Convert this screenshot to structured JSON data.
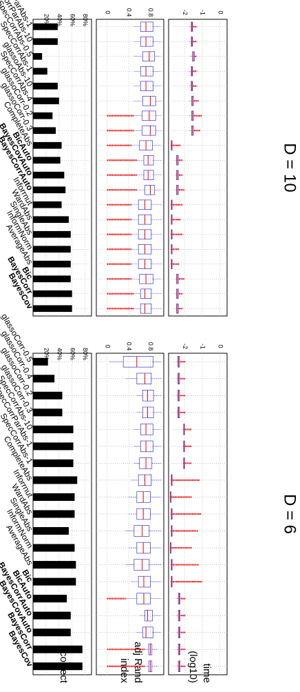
{
  "row_labels": [
    "time\n(log10)",
    "adj Rand\nindex",
    "correct"
  ],
  "chart_data": [
    {
      "type": "boxplot",
      "title": "D = 6",
      "categories": [
        "BayesCov",
        "BayesCorr",
        "BayesCovAuto",
        "BayesCorrAuto",
        "BicAuto",
        "Bic",
        "AverageAbs",
        "InformNorm",
        "SingleAbs",
        "WardAbs",
        "Inforrnut",
        "CompleteAbs",
        "SpecCorrAbs-1",
        "SpecCorrParAbs-1",
        "SpecCorrAbs-10",
        "glassoCorr-0.3",
        "glassoCorr-0.2",
        "glassoCorr-0.4",
        "glassoCorr-0.5"
      ],
      "bold_categories": [
        "BayesCov",
        "BayesCorr",
        "BayesCovAuto",
        "BayesCorrAuto",
        "BicAuto",
        "Bic"
      ],
      "panels": [
        {
          "name": "time",
          "ticks": [
            0,
            -1,
            -2
          ],
          "ylim": [
            -2.9,
            0.4
          ],
          "boxes": [
            [
              -2.45,
              -2.35,
              -2.3,
              -2.25,
              -2.2
            ],
            [
              -2.45,
              -2.35,
              -2.3,
              -2.25,
              -2.2
            ],
            [
              -2.45,
              -2.35,
              -2.3,
              -2.25,
              -2.2
            ],
            [
              -2.45,
              -2.35,
              -2.3,
              -2.25,
              -2.2
            ],
            [
              -2.45,
              -2.35,
              -2.3,
              -2.25,
              -2.2
            ],
            [
              -2.8,
              -2.75,
              -2.72,
              -2.7,
              -2.65
            ],
            [
              -2.8,
              -2.75,
              -2.72,
              -2.7,
              -2.65
            ],
            [
              -2.85,
              -2.8,
              -2.78,
              -2.76,
              -2.72
            ],
            [
              -2.8,
              -2.75,
              -2.72,
              -2.7,
              -2.65
            ],
            [
              -2.8,
              -2.75,
              -2.72,
              -2.7,
              -2.65
            ],
            [
              -2.85,
              -2.8,
              -2.78,
              -2.76,
              -2.72
            ],
            [
              -2.8,
              -2.75,
              -2.72,
              -2.7,
              -2.65
            ],
            [
              -2.1,
              -2.05,
              -2.02,
              -2.0,
              -1.95
            ],
            [
              -2.1,
              -2.05,
              -2.02,
              -2.0,
              -1.95
            ],
            [
              -2.1,
              -2.05,
              -2.02,
              -2.0,
              -1.95
            ],
            [
              -2.45,
              -2.38,
              -2.33,
              -2.28,
              -2.22
            ],
            [
              -2.45,
              -2.38,
              -2.33,
              -2.28,
              -2.22
            ],
            [
              -2.45,
              -2.38,
              -2.33,
              -2.28,
              -2.22
            ],
            [
              -2.45,
              -2.38,
              -2.33,
              -2.28,
              -2.22
            ]
          ],
          "outliers_to": [
            -1.95,
            -1.95,
            -1.95,
            -1.95,
            -1.95,
            -1.0,
            -1.2,
            -1.6,
            -1.25,
            -1.05,
            -1.6,
            -1.15,
            -1.6,
            -1.6,
            -1.6,
            -1.95,
            -1.95,
            -1.95,
            -1.95
          ]
        },
        {
          "name": "adj Rand index",
          "ticks": [
            0.8,
            0.4,
            0
          ],
          "ylim": [
            -0.2,
            1.05
          ],
          "boxes": [
            [
              0.7,
              0.77,
              0.8,
              0.83,
              0.95
            ],
            [
              0.7,
              0.77,
              0.8,
              0.83,
              0.95
            ],
            [
              0.55,
              0.66,
              0.72,
              0.85,
              1.0
            ],
            [
              0.6,
              0.7,
              0.75,
              0.84,
              1.0
            ],
            [
              0.35,
              0.55,
              0.68,
              0.8,
              1.0
            ],
            [
              0.45,
              0.58,
              0.68,
              0.8,
              1.0
            ],
            [
              0.35,
              0.5,
              0.65,
              0.78,
              1.0
            ],
            [
              0.4,
              0.55,
              0.67,
              0.8,
              1.0
            ],
            [
              0.35,
              0.5,
              0.65,
              0.78,
              1.0
            ],
            [
              0.4,
              0.55,
              0.67,
              0.8,
              1.0
            ],
            [
              0.4,
              0.55,
              0.67,
              0.8,
              1.0
            ],
            [
              0.45,
              0.58,
              0.7,
              0.82,
              1.0
            ],
            [
              0.5,
              0.6,
              0.72,
              0.83,
              1.0
            ],
            [
              0.5,
              0.62,
              0.72,
              0.85,
              1.0
            ],
            [
              0.5,
              0.62,
              0.72,
              0.85,
              1.0
            ],
            [
              0.55,
              0.66,
              0.75,
              0.86,
              1.0
            ],
            [
              0.55,
              0.66,
              0.75,
              0.86,
              1.0
            ],
            [
              0.35,
              0.55,
              0.7,
              0.82,
              1.0
            ],
            [
              0.05,
              0.3,
              0.55,
              0.85,
              1.0
            ]
          ],
          "outliers_to": [
            0.0,
            0.0,
            null,
            null,
            0.0,
            null,
            null,
            null,
            null,
            null,
            null,
            null,
            null,
            null,
            null,
            null,
            null,
            null,
            null
          ]
        },
        {
          "name": "correct",
          "type": "bar",
          "ticks": [
            "80%",
            "60%",
            "40%",
            "20%"
          ],
          "ylim": [
            0,
            0.9
          ],
          "values": [
            0.76,
            0.76,
            0.58,
            0.58,
            0.52,
            0.66,
            0.66,
            0.64,
            0.55,
            0.64,
            0.64,
            0.68,
            0.62,
            0.62,
            0.62,
            0.45,
            0.45,
            0.33,
            0.23
          ]
        }
      ]
    },
    {
      "type": "boxplot",
      "title": "D = 10",
      "categories": [
        "BayesCov",
        "BayesCorr",
        "Bic",
        "AverageAbs",
        "InformNorm",
        "SingleAbs",
        "WardAbs",
        "Inforrnut",
        "BayesCorrAuto",
        "BayesCovAuto",
        "BicAuto",
        "CompleteAbs",
        "glassoCorr-0.3",
        "glassoCorr-0.2",
        "SpecCorrAbs-4",
        "glassoAbs-10",
        "SpecCorrAbs-1",
        "SpecCorrAbs-0.5",
        "SpecCorrParAbs-10",
        "SpecCorrParAbs-1"
      ],
      "bold_categories": [
        "BayesCov",
        "BayesCorr",
        "Bic",
        "BayesCorrAuto",
        "BayesCovAuto",
        "BicAuto"
      ],
      "panels": [
        {
          "name": "time",
          "ticks": [
            0,
            -1,
            -2
          ],
          "ylim": [
            -2.9,
            0.4
          ],
          "boxes": [
            [
              -2.5,
              -2.45,
              -2.4,
              -2.35,
              -2.3
            ],
            [
              -2.5,
              -2.45,
              -2.4,
              -2.35,
              -2.3
            ],
            [
              -2.5,
              -2.45,
              -2.4,
              -2.35,
              -2.3
            ],
            [
              -2.8,
              -2.75,
              -2.72,
              -2.7,
              -2.65
            ],
            [
              -2.8,
              -2.75,
              -2.72,
              -2.7,
              -2.65
            ],
            [
              -2.8,
              -2.75,
              -2.72,
              -2.7,
              -2.65
            ],
            [
              -2.8,
              -2.75,
              -2.72,
              -2.7,
              -2.65
            ],
            [
              -2.8,
              -2.75,
              -2.72,
              -2.7,
              -2.65
            ],
            [
              -2.5,
              -2.45,
              -2.4,
              -2.35,
              -2.3
            ],
            [
              -2.5,
              -2.45,
              -2.4,
              -2.35,
              -2.3
            ],
            [
              -2.5,
              -2.45,
              -2.4,
              -2.35,
              -2.3
            ],
            [
              -2.8,
              -2.75,
              -2.72,
              -2.7,
              -2.65
            ],
            [
              -1.75,
              -1.6,
              -1.55,
              -1.5,
              -1.45
            ],
            [
              -1.75,
              -1.6,
              -1.55,
              -1.5,
              -1.45
            ],
            [
              -1.75,
              -1.6,
              -1.55,
              -1.5,
              -1.45
            ],
            [
              -1.75,
              -1.62,
              -1.58,
              -1.55,
              -1.5
            ],
            [
              -1.75,
              -1.62,
              -1.58,
              -1.55,
              -1.5
            ],
            [
              -1.7,
              -1.55,
              -1.5,
              -1.45,
              -1.4
            ],
            [
              -1.75,
              -1.62,
              -1.58,
              -1.55,
              -1.5
            ],
            [
              -1.75,
              -1.62,
              -1.58,
              -1.55,
              -1.5
            ]
          ],
          "outliers_to": [
            -2.1,
            -2.1,
            -2.0,
            -2.3,
            -2.3,
            -2.1,
            -2.2,
            -2.1,
            -2.0,
            -2.1,
            -2.1,
            -2.2,
            -1.1,
            -1.0,
            -1.2,
            -1.3,
            -1.3,
            -1.3,
            -1.3,
            -1.3
          ]
        },
        {
          "name": "adj Rand index",
          "ticks": [
            0.8,
            0.4,
            0
          ],
          "ylim": [
            -0.2,
            1.05
          ],
          "boxes": [
            [
              0.5,
              0.62,
              0.7,
              0.82,
              1.0
            ],
            [
              0.5,
              0.62,
              0.7,
              0.82,
              1.0
            ],
            [
              0.45,
              0.6,
              0.72,
              0.85,
              1.0
            ],
            [
              0.45,
              0.58,
              0.7,
              0.82,
              1.0
            ],
            [
              0.45,
              0.58,
              0.7,
              0.82,
              1.0
            ],
            [
              0.45,
              0.58,
              0.7,
              0.82,
              1.0
            ],
            [
              0.45,
              0.58,
              0.7,
              0.82,
              1.0
            ],
            [
              0.45,
              0.58,
              0.7,
              0.82,
              1.0
            ],
            [
              0.55,
              0.7,
              0.8,
              0.88,
              1.0
            ],
            [
              0.55,
              0.68,
              0.76,
              0.86,
              1.0
            ],
            [
              0.55,
              0.68,
              0.76,
              0.86,
              1.0
            ],
            [
              0.45,
              0.6,
              0.72,
              0.84,
              1.0
            ],
            [
              0.5,
              0.65,
              0.8,
              0.9,
              1.0
            ],
            [
              0.5,
              0.65,
              0.78,
              0.9,
              1.0
            ],
            [
              0.5,
              0.66,
              0.8,
              0.9,
              1.0
            ],
            [
              0.5,
              0.62,
              0.72,
              0.85,
              1.0
            ],
            [
              0.5,
              0.62,
              0.72,
              0.85,
              1.0
            ],
            [
              0.5,
              0.66,
              0.78,
              0.88,
              1.0
            ],
            [
              0.5,
              0.62,
              0.72,
              0.85,
              1.0
            ],
            [
              0.5,
              0.62,
              0.72,
              0.85,
              1.0
            ]
          ],
          "outliers_to": [
            0.0,
            0.0,
            0.0,
            0.0,
            0.0,
            0.0,
            0.0,
            0.0,
            0.0,
            0.0,
            0.0,
            0.0,
            0.0,
            0.0,
            null,
            null,
            null,
            null,
            null,
            null
          ]
        },
        {
          "name": "correct",
          "type": "bar",
          "ticks": [
            "80%",
            "60%",
            "40%",
            "20%"
          ],
          "ylim": [
            0,
            0.9
          ],
          "values": [
            0.6,
            0.6,
            0.58,
            0.58,
            0.58,
            0.58,
            0.55,
            0.44,
            0.5,
            0.48,
            0.42,
            0.44,
            0.35,
            0.3,
            0.4,
            0.38,
            0.22,
            0.14,
            0.38,
            0.38
          ]
        }
      ]
    }
  ]
}
